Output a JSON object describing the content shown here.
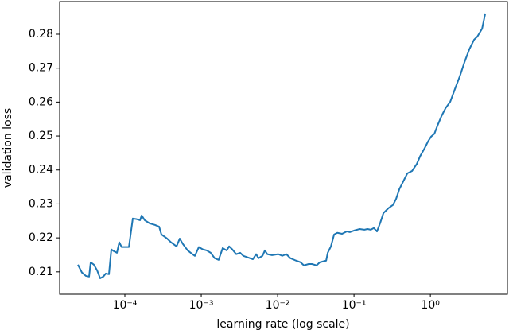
{
  "chart_data": {
    "type": "line",
    "xlabel": "learning rate (log scale)",
    "ylabel": "validation loss",
    "xscale": "log",
    "xlim": [
      1.4e-05,
      10.2
    ],
    "ylim": [
      0.2034,
      0.2896
    ],
    "xticks": [
      {
        "value": 0.0001,
        "label": "10⁻⁴"
      },
      {
        "value": 0.001,
        "label": "10⁻³"
      },
      {
        "value": 0.01,
        "label": "10⁻²"
      },
      {
        "value": 0.1,
        "label": "10⁻¹"
      },
      {
        "value": 1,
        "label": "10⁰"
      }
    ],
    "yticks": [
      0.21,
      0.22,
      0.23,
      0.24,
      0.25,
      0.26,
      0.27,
      0.28
    ],
    "grid": false,
    "series": [
      {
        "name": "validation loss",
        "color": "#1f77b4",
        "x": [
          2.43e-05,
          2.74e-05,
          3.09e-05,
          3.4e-05,
          3.57e-05,
          3.93e-05,
          4.32e-05,
          4.75e-05,
          5.23e-05,
          5.62e-05,
          6.19e-05,
          6.65e-05,
          7.15e-05,
          7.87e-05,
          8.45e-05,
          9.08e-05,
          0.000102,
          0.000113,
          0.000127,
          0.000143,
          0.000158,
          0.000166,
          0.000182,
          0.00021,
          0.000249,
          0.000281,
          0.000301,
          0.000357,
          0.000402,
          0.000475,
          0.000523,
          0.000575,
          0.000665,
          0.000767,
          0.000825,
          0.000931,
          0.00105,
          0.00118,
          0.00133,
          0.0015,
          0.00169,
          0.00191,
          0.00215,
          0.00232,
          0.00255,
          0.00287,
          0.00324,
          0.00356,
          0.00412,
          0.00475,
          0.00523,
          0.00562,
          0.00634,
          0.00681,
          0.00732,
          0.00845,
          0.0102,
          0.0115,
          0.013,
          0.0147,
          0.0174,
          0.02,
          0.0221,
          0.0255,
          0.0281,
          0.0324,
          0.0356,
          0.0432,
          0.0453,
          0.0499,
          0.0549,
          0.0604,
          0.0698,
          0.0805,
          0.0887,
          0.102,
          0.118,
          0.137,
          0.15,
          0.166,
          0.182,
          0.2,
          0.221,
          0.243,
          0.281,
          0.324,
          0.356,
          0.393,
          0.432,
          0.499,
          0.575,
          0.665,
          0.732,
          0.845,
          0.931,
          1.02,
          1.13,
          1.24,
          1.4,
          1.58,
          1.82,
          2.1,
          2.43,
          2.8,
          3.24,
          3.74,
          4.12,
          4.75,
          5.23
        ],
        "values": [
          0.2121,
          0.2098,
          0.2088,
          0.2086,
          0.2128,
          0.2121,
          0.2105,
          0.2081,
          0.2086,
          0.2095,
          0.2093,
          0.2166,
          0.2161,
          0.2156,
          0.2187,
          0.2173,
          0.2173,
          0.2173,
          0.2257,
          0.2255,
          0.2252,
          0.2266,
          0.2252,
          0.2243,
          0.2238,
          0.2233,
          0.221,
          0.2198,
          0.2187,
          0.2175,
          0.2198,
          0.2182,
          0.2163,
          0.2152,
          0.2147,
          0.2173,
          0.2166,
          0.2163,
          0.2156,
          0.214,
          0.2135,
          0.217,
          0.2163,
          0.2175,
          0.2166,
          0.2152,
          0.2156,
          0.2147,
          0.2142,
          0.2137,
          0.2152,
          0.214,
          0.2147,
          0.2163,
          0.2152,
          0.2149,
          0.2152,
          0.2147,
          0.2152,
          0.214,
          0.2133,
          0.2128,
          0.2119,
          0.2123,
          0.2123,
          0.2119,
          0.2128,
          0.2133,
          0.2156,
          0.2175,
          0.221,
          0.2215,
          0.2212,
          0.2219,
          0.2217,
          0.2222,
          0.2226,
          0.2224,
          0.2226,
          0.2224,
          0.2229,
          0.2219,
          0.2245,
          0.2273,
          0.2287,
          0.2297,
          0.2315,
          0.2344,
          0.2362,
          0.239,
          0.2397,
          0.2418,
          0.244,
          0.2465,
          0.2484,
          0.2498,
          0.2507,
          0.2531,
          0.2559,
          0.2582,
          0.2601,
          0.2639,
          0.2676,
          0.2718,
          0.2756,
          0.2784,
          0.2793,
          0.2816,
          0.2861
        ]
      }
    ]
  }
}
